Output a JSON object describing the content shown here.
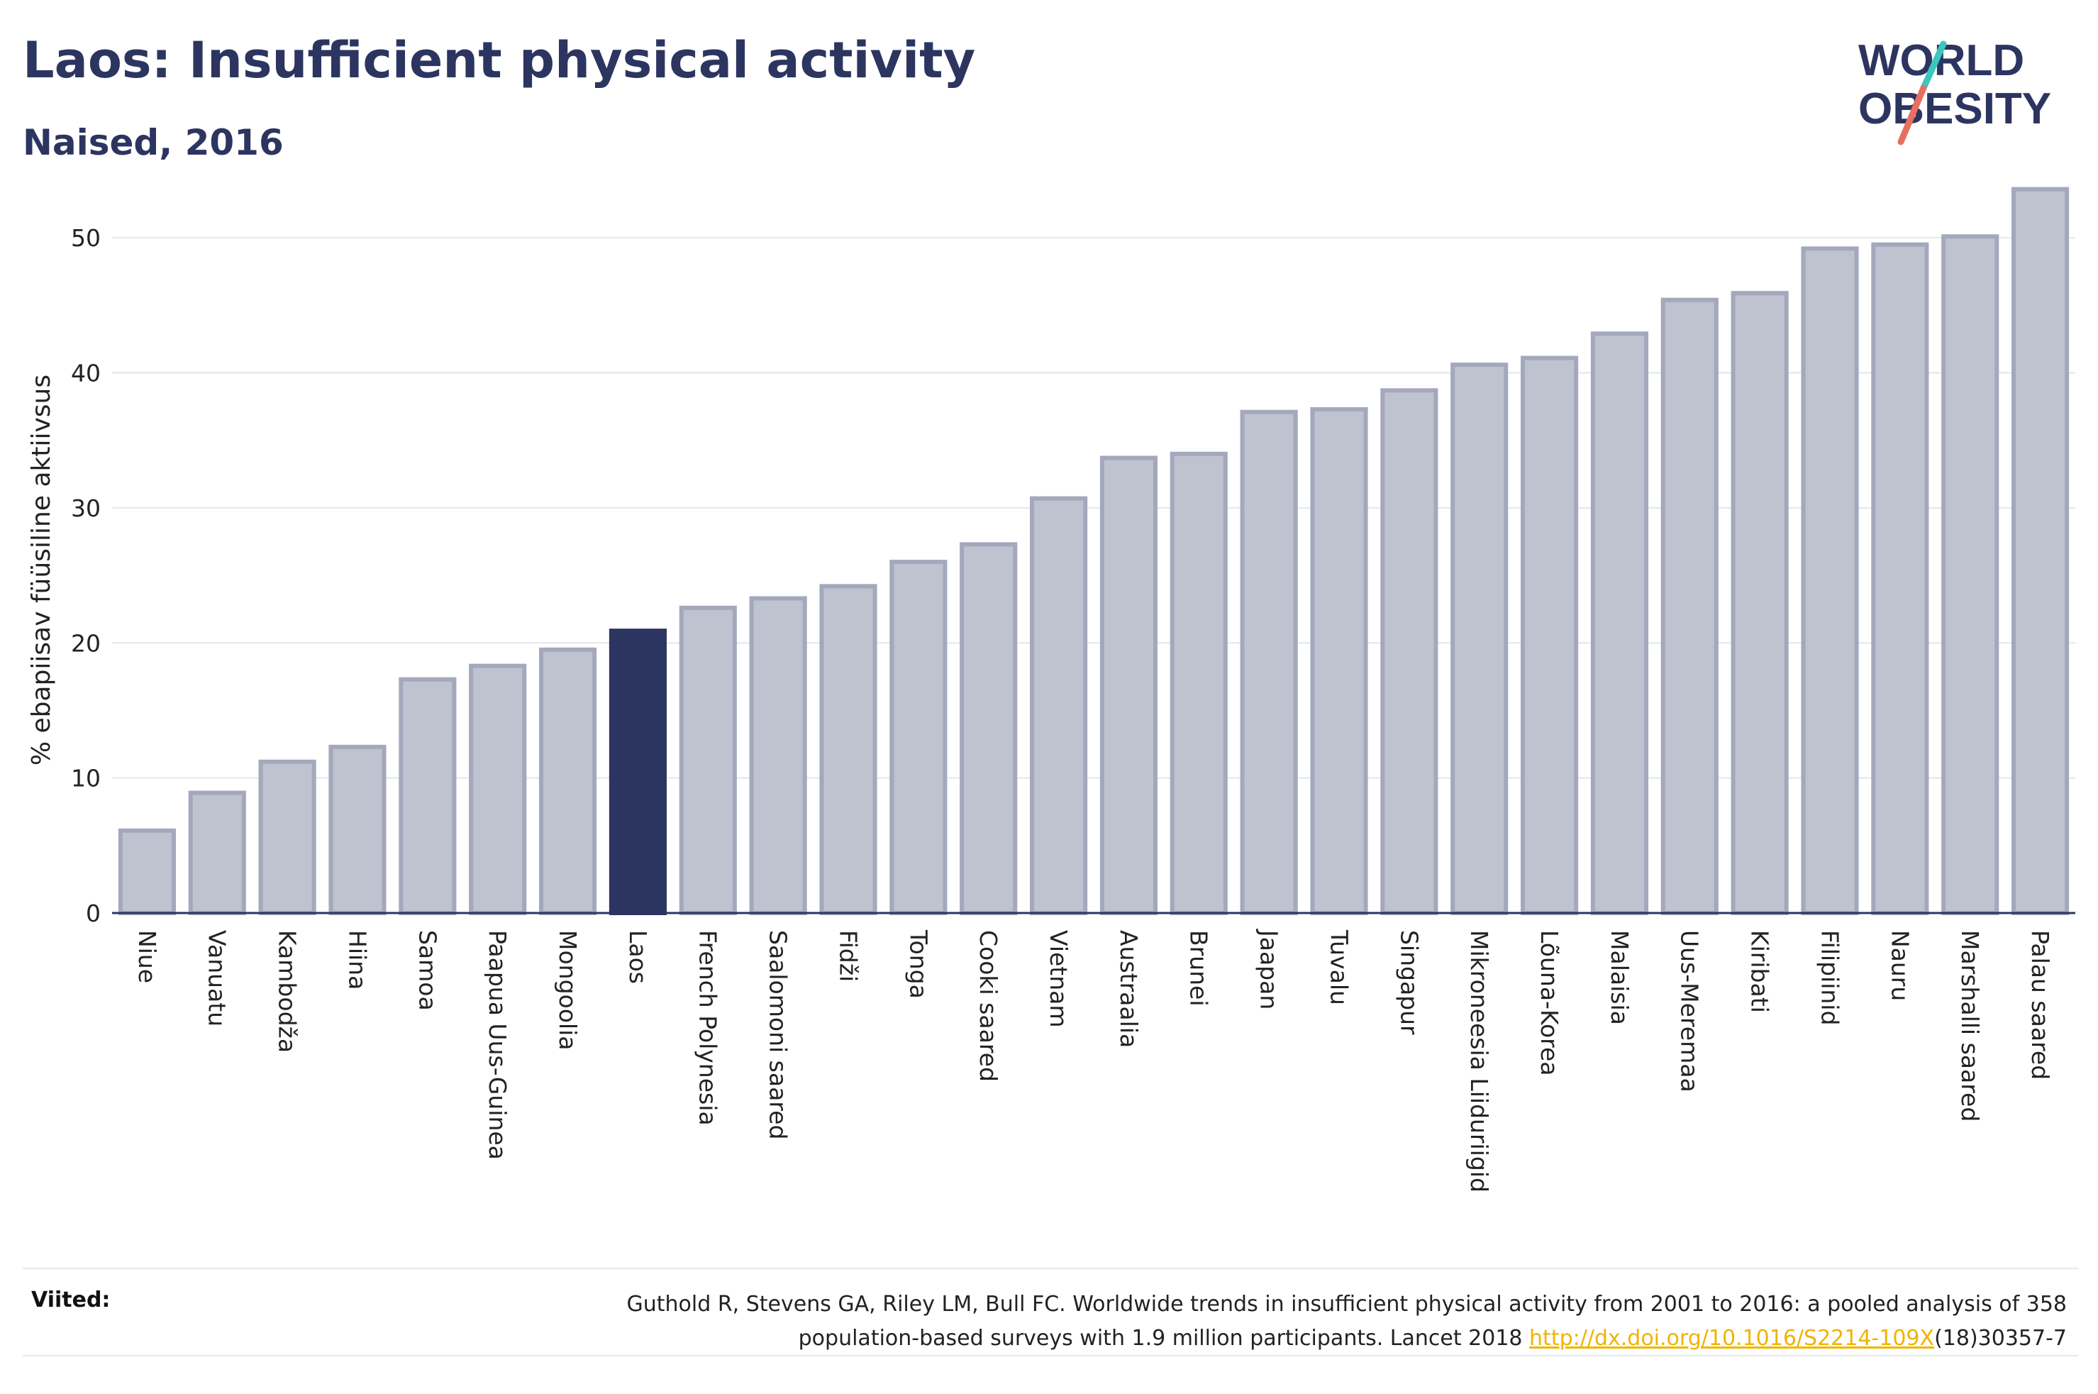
{
  "header": {
    "title": "Laos: Insufficient physical activity",
    "subtitle": "Naised, 2016"
  },
  "logo": {
    "line1": "WORLD",
    "line2": "OBESITY",
    "accent_teal": "#3cc6c0",
    "accent_coral": "#e8705f"
  },
  "chart_data": {
    "type": "bar",
    "ylabel": "% ebapiisav füüsiline aktiivsus",
    "ylim": [
      0,
      55
    ],
    "yticks": [
      0,
      10,
      20,
      30,
      40,
      50
    ],
    "grid": true,
    "highlight": "Laos",
    "bar_color": "#bfc2cf",
    "bar_edge_color": "#a3a8bc",
    "highlight_color": "#2c3560",
    "categories": [
      "Niue",
      "Vanuatu",
      "Kambodža",
      "Hiina",
      "Samoa",
      "Paapua Uus-Guinea",
      "Mongoolia",
      "Laos",
      "French Polynesia",
      "Saalomoni saared",
      "Fidži",
      "Tonga",
      "Cooki saared",
      "Vietnam",
      "Austraalia",
      "Brunei",
      "Jaapan",
      "Tuvalu",
      "Singapur",
      "Mikroneesia Liiduriigid",
      "Lõuna-Korea",
      "Malaisia",
      "Uus-Meremaa",
      "Kiribati",
      "Filipiinid",
      "Nauru",
      "Marshalli saared",
      "Palau saared"
    ],
    "values": [
      6.1,
      8.9,
      11.2,
      12.3,
      17.3,
      18.3,
      19.5,
      20.9,
      22.6,
      23.3,
      24.2,
      26.0,
      27.3,
      30.7,
      33.7,
      34.0,
      37.1,
      37.3,
      38.7,
      40.6,
      41.1,
      42.9,
      45.4,
      45.9,
      49.2,
      49.5,
      50.1,
      53.6
    ]
  },
  "sources": {
    "label": "Viited:",
    "text_line1": "Guthold R, Stevens GA, Riley LM, Bull FC. Worldwide trends in insufficient physical activity from 2001 to 2016: a pooled analysis of 358",
    "text_line2_prefix": "population-based surveys with 1.9 million participants. Lancet 2018 ",
    "link_text": "http://dx.doi.org/10.1016/S2214-109X",
    "text_line2_suffix": "(18)30357-7"
  }
}
